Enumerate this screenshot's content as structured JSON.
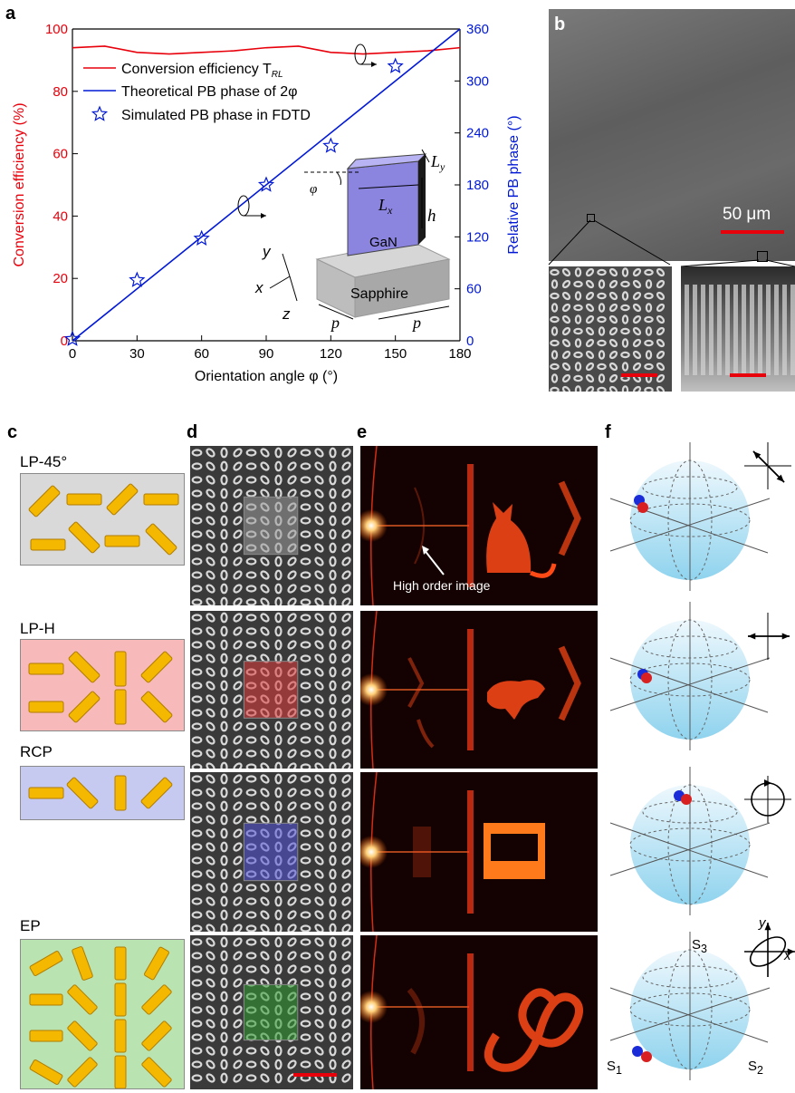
{
  "panel_a": {
    "letter": "a",
    "chart_data": {
      "type": "line",
      "xlabel": "Orientation angle φ (°)",
      "ylabel_left": "Conversion efficiency (%)",
      "ylabel_right": "Relative PB phase (°)",
      "xlim": [
        0,
        180
      ],
      "ylim_left": [
        0,
        100
      ],
      "ylim_right": [
        0,
        360
      ],
      "x_ticks": [
        "0",
        "30",
        "60",
        "90",
        "120",
        "150",
        "180"
      ],
      "y_left_ticks": [
        "0",
        "20",
        "40",
        "60",
        "80",
        "100"
      ],
      "y_right_ticks": [
        "0",
        "60",
        "120",
        "180",
        "240",
        "300",
        "360"
      ],
      "legend": {
        "conversion": "Conversion efficiency T",
        "conversion_sub": "RL",
        "theory": "Theoretical PB phase of 2φ",
        "simulated": "Simulated PB phase in FDTD"
      },
      "series": [
        {
          "name": "Conversion efficiency T_RL",
          "axis": "left",
          "color": "#e8000b",
          "x": [
            0,
            15,
            30,
            45,
            60,
            75,
            90,
            105,
            120,
            135,
            150,
            165,
            180
          ],
          "y": [
            94,
            94.5,
            92.5,
            92,
            92.5,
            93,
            94,
            94.5,
            92.5,
            92,
            92.5,
            93,
            94
          ]
        },
        {
          "name": "Theoretical PB phase of 2φ",
          "axis": "right",
          "color": "#0018d6",
          "x": [
            0,
            180
          ],
          "y": [
            0,
            360
          ]
        },
        {
          "name": "Simulated PB phase in FDTD",
          "axis": "right",
          "color": "#0018d6",
          "x": [
            0,
            30,
            60,
            90,
            120,
            150
          ],
          "y": [
            2,
            70,
            118,
            180,
            225,
            317
          ]
        }
      ]
    },
    "inset": {
      "gan": "GaN",
      "sapphire": "Sapphire",
      "Lx": "L",
      "Lx_sub": "x",
      "Ly": "L",
      "Ly_sub": "y",
      "h": "h",
      "phi": "φ",
      "p1": "p",
      "p2": "p",
      "ax_x": "x",
      "ax_y": "y",
      "ax_z": "z"
    }
  },
  "panel_b": {
    "letter": "b",
    "scale": "50 μm"
  },
  "panel_c": {
    "letter": "c",
    "labels": [
      "LP-45°",
      "LP-H",
      "RCP",
      "EP"
    ]
  },
  "panel_d": {
    "letter": "d"
  },
  "panel_e": {
    "letter": "e",
    "annotation": "High order image"
  },
  "panel_f": {
    "letter": "f",
    "S1": "S",
    "S1_sub": "1",
    "S2": "S",
    "S2_sub": "2",
    "S3": "S",
    "S3_sub": "3",
    "ex": "x",
    "ey": "y"
  },
  "colors": {
    "efficiency": "#e8000b",
    "phase": "#0018d6",
    "lp45_box": "#d9d9d9",
    "lph_box": "#f7b9b9",
    "rcp_box": "#c6c9f0",
    "ep_box": "#b9e3b1",
    "nanorod": "#f5b800"
  }
}
